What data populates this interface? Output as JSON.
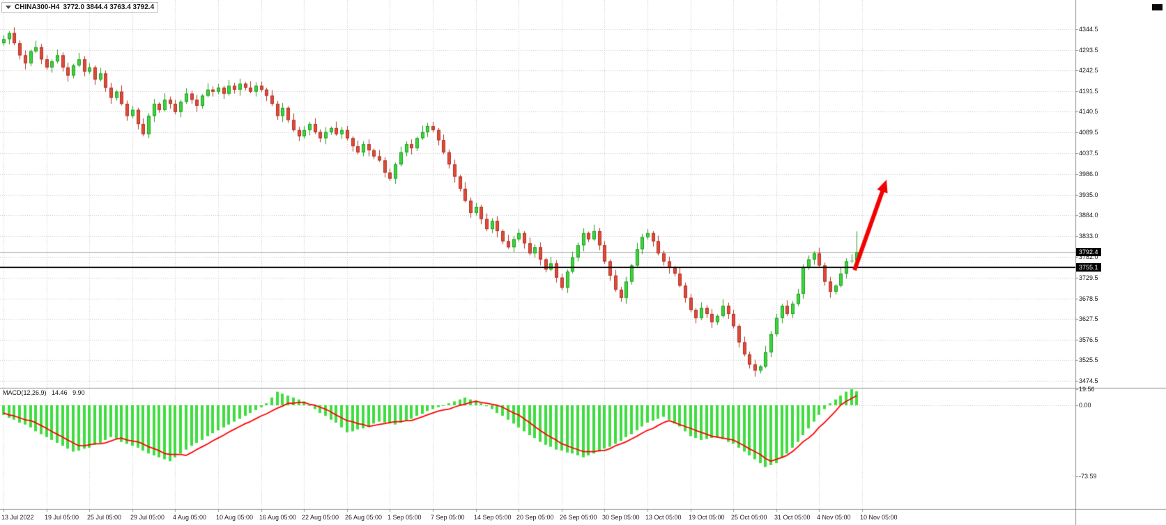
{
  "header": {
    "quote_bar": {
      "symbol": "CHINA300-H4",
      "ohlc": "3772.0 3844.4 3763.4 3792.4"
    }
  },
  "chart_data": {
    "type": "candlestick_with_macd",
    "symbol": "CHINA300-H4",
    "timeframe": "H4",
    "current_candle": {
      "open": 3772.0,
      "high": 3844.4,
      "low": 3763.4,
      "close": 3792.4
    },
    "bid_price": 3792.4,
    "bid_label": "3792.4",
    "hline_price": 3755.1,
    "hline_label": "3755.1",
    "price_axis_ticks": [
      4344.5,
      4293.5,
      4242.5,
      4191.5,
      4140.5,
      4089.5,
      4037.5,
      3986.0,
      3935.0,
      3884.0,
      3833.0,
      3782.0,
      3729.5,
      3678.5,
      3627.5,
      3576.5,
      3525.5,
      3474.5
    ],
    "time_axis_labels": [
      "13 Jul 2022",
      "19 Jul 05:00",
      "25 Jul 05:00",
      "29 Jul 05:00",
      "4 Aug 05:00",
      "10 Aug 05:00",
      "16 Aug 05:00",
      "22 Aug 05:00",
      "26 Aug 05:00",
      "1 Sep 05:00",
      "7 Sep 05:00",
      "14 Sep 05:00",
      "20 Sep 05:00",
      "26 Sep 05:00",
      "30 Sep 05:00",
      "13 Oct 05:00",
      "19 Oct 05:00",
      "25 Oct 05:00",
      "31 Oct 05:00",
      "4 Nov 05:00",
      "10 Nov 05:00"
    ],
    "candles": [
      [
        4310,
        4330,
        4304,
        4320
      ],
      [
        4320,
        4340,
        4307,
        4335
      ],
      [
        4335,
        4349,
        4305,
        4310
      ],
      [
        4310,
        4317,
        4270,
        4280
      ],
      [
        4280,
        4292,
        4245,
        4260
      ],
      [
        4260,
        4294,
        4253,
        4290
      ],
      [
        4290,
        4316,
        4286,
        4300
      ],
      [
        4300,
        4308,
        4258,
        4270
      ],
      [
        4270,
        4280,
        4244,
        4250
      ],
      [
        4250,
        4270,
        4237,
        4265
      ],
      [
        4265,
        4294,
        4260,
        4280
      ],
      [
        4280,
        4287,
        4240,
        4250
      ],
      [
        4250,
        4262,
        4215,
        4230
      ],
      [
        4230,
        4259,
        4223,
        4255
      ],
      [
        4255,
        4286,
        4251,
        4270
      ],
      [
        4270,
        4278,
        4228,
        4240
      ],
      [
        4240,
        4260,
        4234,
        4250
      ],
      [
        4250,
        4255,
        4207,
        4220
      ],
      [
        4220,
        4249,
        4215,
        4235
      ],
      [
        4235,
        4242,
        4190,
        4200
      ],
      [
        4200,
        4212,
        4160,
        4175
      ],
      [
        4175,
        4194,
        4168,
        4190
      ],
      [
        4190,
        4206,
        4156,
        4160
      ],
      [
        4160,
        4168,
        4118,
        4130
      ],
      [
        4130,
        4155,
        4124,
        4145
      ],
      [
        4145,
        4150,
        4097,
        4110
      ],
      [
        4110,
        4124,
        4080,
        4085
      ],
      [
        4085,
        4137,
        4075,
        4130
      ],
      [
        4130,
        4172,
        4115,
        4160
      ],
      [
        4160,
        4164,
        4138,
        4145
      ],
      [
        4145,
        4186,
        4141,
        4170
      ],
      [
        4170,
        4178,
        4148,
        4160
      ],
      [
        4160,
        4170,
        4134,
        4140
      ],
      [
        4140,
        4170,
        4127,
        4165
      ],
      [
        4165,
        4199,
        4160,
        4185
      ],
      [
        4185,
        4192,
        4160,
        4170
      ],
      [
        4170,
        4182,
        4140,
        4155
      ],
      [
        4155,
        4184,
        4148,
        4180
      ],
      [
        4180,
        4211,
        4176,
        4195
      ],
      [
        4195,
        4203,
        4178,
        4190
      ],
      [
        4190,
        4210,
        4184,
        4200
      ],
      [
        4200,
        4205,
        4172,
        4185
      ],
      [
        4185,
        4219,
        4180,
        4205
      ],
      [
        4205,
        4212,
        4185,
        4195
      ],
      [
        4195,
        4222,
        4180,
        4210
      ],
      [
        4210,
        4214,
        4193,
        4200
      ],
      [
        4200,
        4216,
        4186,
        4190
      ],
      [
        4190,
        4213,
        4178,
        4205
      ],
      [
        4205,
        4215,
        4189,
        4195
      ],
      [
        4195,
        4200,
        4167,
        4180
      ],
      [
        4180,
        4194,
        4155,
        4160
      ],
      [
        4160,
        4167,
        4120,
        4130
      ],
      [
        4130,
        4162,
        4115,
        4150
      ],
      [
        4150,
        4154,
        4113,
        4120
      ],
      [
        4120,
        4136,
        4091,
        4095
      ],
      [
        4095,
        4103,
        4068,
        4080
      ],
      [
        4080,
        4105,
        4074,
        4095
      ],
      [
        4095,
        4115,
        4082,
        4110
      ],
      [
        4110,
        4124,
        4085,
        4090
      ],
      [
        4090,
        4097,
        4065,
        4075
      ],
      [
        4075,
        4102,
        4060,
        4090
      ],
      [
        4090,
        4104,
        4083,
        4100
      ],
      [
        4100,
        4116,
        4081,
        4085
      ],
      [
        4085,
        4103,
        4073,
        4095
      ],
      [
        4095,
        4105,
        4069,
        4075
      ],
      [
        4075,
        4080,
        4042,
        4055
      ],
      [
        4055,
        4069,
        4035,
        4040
      ],
      [
        4040,
        4067,
        4030,
        4060
      ],
      [
        4060,
        4072,
        4030,
        4045
      ],
      [
        4045,
        4049,
        4023,
        4030
      ],
      [
        4030,
        4046,
        4016,
        4020
      ],
      [
        4020,
        4028,
        3978,
        3990
      ],
      [
        3990,
        4000,
        3969,
        3975
      ],
      [
        3975,
        4015,
        3962,
        4010
      ],
      [
        4010,
        4054,
        4005,
        4040
      ],
      [
        4040,
        4067,
        4030,
        4060
      ],
      [
        4060,
        4072,
        4035,
        4050
      ],
      [
        4050,
        4079,
        4043,
        4075
      ],
      [
        4075,
        4106,
        4071,
        4090
      ],
      [
        4090,
        4113,
        4078,
        4105
      ],
      [
        4105,
        4115,
        4089,
        4095
      ],
      [
        4095,
        4100,
        4057,
        4070
      ],
      [
        4070,
        4084,
        4035,
        4040
      ],
      [
        4040,
        4047,
        4000,
        4010
      ],
      [
        4010,
        4022,
        3965,
        3980
      ],
      [
        3980,
        3984,
        3943,
        3950
      ],
      [
        3950,
        3966,
        3916,
        3920
      ],
      [
        3920,
        3928,
        3878,
        3890
      ],
      [
        3890,
        3915,
        3884,
        3905
      ],
      [
        3905,
        3910,
        3862,
        3875
      ],
      [
        3875,
        3889,
        3845,
        3850
      ],
      [
        3850,
        3877,
        3840,
        3870
      ],
      [
        3870,
        3882,
        3830,
        3845
      ],
      [
        3845,
        3849,
        3813,
        3820
      ],
      [
        3820,
        3836,
        3801,
        3805
      ],
      [
        3805,
        3833,
        3793,
        3825
      ],
      [
        3825,
        3850,
        3819,
        3840
      ],
      [
        3840,
        3845,
        3802,
        3815
      ],
      [
        3815,
        3829,
        3785,
        3790
      ],
      [
        3790,
        3812,
        3780,
        3805
      ],
      [
        3805,
        3817,
        3760,
        3775
      ],
      [
        3775,
        3779,
        3743,
        3750
      ],
      [
        3750,
        3781,
        3746,
        3765
      ],
      [
        3765,
        3773,
        3718,
        3730
      ],
      [
        3730,
        3740,
        3699,
        3705
      ],
      [
        3705,
        3750,
        3692,
        3745
      ],
      [
        3745,
        3794,
        3740,
        3780
      ],
      [
        3780,
        3817,
        3770,
        3810
      ],
      [
        3810,
        3852,
        3795,
        3840
      ],
      [
        3840,
        3844,
        3818,
        3825
      ],
      [
        3825,
        3861,
        3821,
        3845
      ],
      [
        3845,
        3853,
        3798,
        3810
      ],
      [
        3810,
        3820,
        3764,
        3770
      ],
      [
        3770,
        3775,
        3722,
        3735
      ],
      [
        3735,
        3749,
        3695,
        3700
      ],
      [
        3700,
        3707,
        3670,
        3680
      ],
      [
        3680,
        3732,
        3665,
        3720
      ],
      [
        3720,
        3764,
        3713,
        3760
      ],
      [
        3760,
        3816,
        3756,
        3800
      ],
      [
        3800,
        3838,
        3788,
        3830
      ],
      [
        3830,
        3850,
        3824,
        3840
      ],
      [
        3840,
        3845,
        3807,
        3820
      ],
      [
        3820,
        3834,
        3785,
        3790
      ],
      [
        3790,
        3797,
        3760,
        3770
      ],
      [
        3770,
        3782,
        3740,
        3755
      ],
      [
        3755,
        3759,
        3733,
        3740
      ],
      [
        3740,
        3756,
        3706,
        3710
      ],
      [
        3710,
        3718,
        3668,
        3680
      ],
      [
        3680,
        3690,
        3644,
        3650
      ],
      [
        3650,
        3655,
        3617,
        3630
      ],
      [
        3630,
        3669,
        3625,
        3655
      ],
      [
        3655,
        3662,
        3630,
        3640
      ],
      [
        3640,
        3652,
        3605,
        3620
      ],
      [
        3620,
        3639,
        3613,
        3635
      ],
      [
        3635,
        3676,
        3631,
        3660
      ],
      [
        3660,
        3668,
        3628,
        3640
      ],
      [
        3640,
        3650,
        3604,
        3610
      ],
      [
        3610,
        3615,
        3557,
        3570
      ],
      [
        3570,
        3584,
        3535,
        3540
      ],
      [
        3540,
        3547,
        3505,
        3515
      ],
      [
        3515,
        3527,
        3485,
        3500
      ],
      [
        3500,
        3514,
        3493,
        3510
      ],
      [
        3510,
        3561,
        3506,
        3545
      ],
      [
        3545,
        3598,
        3533,
        3590
      ],
      [
        3590,
        3640,
        3584,
        3630
      ],
      [
        3630,
        3665,
        3617,
        3660
      ],
      [
        3660,
        3674,
        3635,
        3640
      ],
      [
        3640,
        3672,
        3630,
        3665
      ],
      [
        3665,
        3702,
        3660,
        3690
      ],
      [
        3690,
        3763,
        3678,
        3755
      ],
      [
        3755,
        3785,
        3749,
        3775
      ],
      [
        3775,
        3795,
        3762,
        3790
      ],
      [
        3790,
        3804,
        3755,
        3760
      ],
      [
        3760,
        3767,
        3710,
        3720
      ],
      [
        3720,
        3732,
        3680,
        3695
      ],
      [
        3695,
        3714,
        3688,
        3710
      ],
      [
        3710,
        3756,
        3706,
        3740
      ],
      [
        3740,
        3778,
        3728,
        3770
      ],
      [
        3770,
        3788,
        3766,
        3772
      ],
      [
        3772,
        3844.4,
        3763.4,
        3792.4
      ]
    ],
    "macd": {
      "label": "MACD(12,26,9)",
      "main_value": "14.46",
      "signal_value": "9.90",
      "axis_ticks": [
        {
          "label": "19.56",
          "value": 19.56
        },
        {
          "label": "0.00",
          "value": 0
        },
        {
          "label": "-73.59",
          "value": -73.59
        }
      ],
      "hist": [
        -10,
        -13,
        -15,
        -18,
        -20,
        -23,
        -27,
        -30,
        -33,
        -36,
        -39,
        -42,
        -45,
        -48,
        -47,
        -45,
        -44,
        -41,
        -39,
        -36,
        -33,
        -35,
        -38,
        -40,
        -42,
        -44,
        -47,
        -50,
        -52,
        -54,
        -56,
        -58,
        -54,
        -50,
        -46,
        -42,
        -39,
        -36,
        -32,
        -29,
        -26,
        -23,
        -20,
        -17,
        -14,
        -11,
        -8,
        -5,
        -2,
        2,
        8,
        14,
        12,
        10,
        8,
        6,
        4,
        0,
        -4,
        -8,
        -11,
        -15,
        -18,
        -23,
        -28,
        -27,
        -25,
        -24,
        -22,
        -19,
        -17,
        -18,
        -19,
        -20,
        -18,
        -16,
        -14,
        -11,
        -9,
        -6,
        -4,
        -2,
        0,
        2,
        4,
        6,
        8,
        6,
        5,
        2,
        -1,
        -4,
        -8,
        -11,
        -15,
        -19,
        -23,
        -27,
        -31,
        -34,
        -38,
        -41,
        -43,
        -46,
        -47,
        -49,
        -50,
        -52,
        -54,
        -52,
        -50,
        -48,
        -45,
        -43,
        -40,
        -37,
        -33,
        -30,
        -26,
        -22,
        -18,
        -16,
        -14,
        -12,
        -15,
        -19,
        -22,
        -27,
        -32,
        -34,
        -36,
        -35,
        -34,
        -33,
        -35,
        -38,
        -40,
        -44,
        -48,
        -52,
        -56,
        -60,
        -64,
        -62,
        -60,
        -55,
        -50,
        -44,
        -38,
        -31,
        -24,
        -17,
        -10,
        -4,
        2,
        6,
        10,
        14,
        19.56,
        14.46
      ],
      "signal": [
        -8,
        -10,
        -11,
        -13,
        -15,
        -16,
        -18,
        -21,
        -24,
        -27,
        -30,
        -33,
        -36,
        -39,
        -42,
        -42,
        -41,
        -40,
        -40,
        -39,
        -37,
        -35,
        -34,
        -36,
        -37,
        -38,
        -40,
        -43,
        -45,
        -47,
        -50,
        -51,
        -51,
        -51,
        -52,
        -49,
        -46,
        -43,
        -40,
        -37,
        -34,
        -31,
        -28,
        -25,
        -22,
        -19,
        -17,
        -14,
        -11,
        -9,
        -6,
        -3,
        -1,
        2,
        2,
        3,
        3,
        1,
        0,
        -2,
        -4,
        -7,
        -10,
        -13,
        -16,
        -17,
        -19,
        -20,
        -22,
        -21,
        -20,
        -19,
        -18,
        -17,
        -17,
        -16,
        -16,
        -14,
        -12,
        -10,
        -8,
        -6,
        -5,
        -4,
        -2,
        0,
        1,
        3,
        4,
        3,
        2,
        1,
        0,
        -2,
        -5,
        -8,
        -10,
        -14,
        -18,
        -22,
        -26,
        -30,
        -33,
        -36,
        -40,
        -42,
        -44,
        -46,
        -48,
        -48,
        -48,
        -47,
        -47,
        -45,
        -42,
        -40,
        -38,
        -35,
        -32,
        -29,
        -26,
        -24,
        -21,
        -18,
        -16,
        -18,
        -20,
        -22,
        -24,
        -26,
        -28,
        -30,
        -32,
        -33,
        -34,
        -35,
        -36,
        -39,
        -42,
        -45,
        -48,
        -51,
        -55,
        -58,
        -56,
        -54,
        -52,
        -48,
        -43,
        -38,
        -34,
        -29,
        -23,
        -18,
        -12,
        -6,
        0,
        4,
        7,
        9.9
      ]
    },
    "arrow_annotation": {
      "from": [
        1226,
        388
      ],
      "to": [
        1272,
        258
      ]
    },
    "colors": {
      "bull": "#3ed43e",
      "bull_border": "#1f9e1f",
      "bear": "#df4a3a",
      "bear_border": "#b03326",
      "grid": "#c6c6c6",
      "separator": "#909090",
      "bid_line": "#b5b5b5",
      "hline": "#000000",
      "macd_hist": "#3fdd3f",
      "macd_signal": "#ff0000",
      "arrow": "#f30000",
      "tag_bg": "#000000",
      "tag_fg": "#ffffff"
    }
  }
}
